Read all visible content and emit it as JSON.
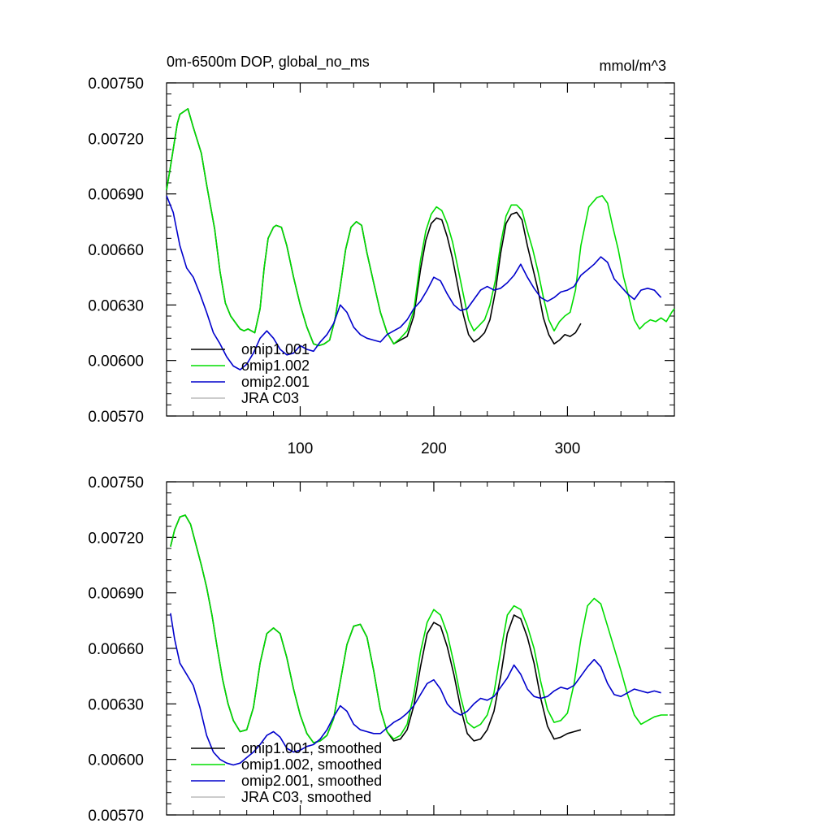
{
  "chart_data": [
    {
      "type": "line",
      "title": "0m-6500m DOP, global_no_ms",
      "units": "mmol/m^3",
      "xlim": [
        0,
        380
      ],
      "ylim": [
        0.0057,
        0.0075
      ],
      "xticks": [
        100,
        200,
        300
      ],
      "xtick_labels": [
        "100",
        "200",
        "300"
      ],
      "show_xtick_labels": true,
      "yticks": [
        0.0057,
        0.006,
        0.0063,
        0.0066,
        0.0069,
        0.0072,
        0.0075
      ],
      "ytick_labels": [
        "0.00570",
        "0.00600",
        "0.00630",
        "0.00660",
        "0.00690",
        "0.00720",
        "0.00750"
      ],
      "grid": false,
      "legend_position": "bottom-left",
      "series": [
        {
          "name": "omip1.001",
          "color": "#000000",
          "x": [
            0,
            3,
            8,
            10,
            16,
            20,
            26,
            30,
            36,
            40,
            44,
            48,
            52,
            55,
            58,
            61,
            66,
            70,
            73,
            76,
            80,
            82,
            86,
            90,
            95,
            100,
            105,
            110,
            114,
            118,
            122,
            126,
            130,
            134,
            138,
            142,
            146,
            150,
            155,
            160,
            165,
            170,
            175,
            180,
            185,
            190,
            194,
            198,
            202,
            206,
            210,
            214,
            218,
            222,
            226,
            230,
            234,
            238,
            242,
            246,
            250,
            254,
            258,
            262,
            266,
            270,
            274,
            278,
            282,
            286,
            290,
            294,
            298,
            302,
            306,
            310
          ],
          "y": [
            0.00692,
            0.00705,
            0.00728,
            0.00733,
            0.00736,
            0.00726,
            0.00712,
            0.00695,
            0.00671,
            0.00648,
            0.00631,
            0.00624,
            0.0062,
            0.00617,
            0.00616,
            0.00617,
            0.00615,
            0.00628,
            0.0065,
            0.00666,
            0.00672,
            0.00673,
            0.00672,
            0.00662,
            0.00645,
            0.0063,
            0.00618,
            0.00609,
            0.00608,
            0.00609,
            0.00611,
            0.00622,
            0.0064,
            0.0066,
            0.00672,
            0.00675,
            0.00673,
            0.00658,
            0.00642,
            0.00626,
            0.00615,
            0.00609,
            0.00611,
            0.00613,
            0.00624,
            0.00649,
            0.00665,
            0.00674,
            0.00677,
            0.00676,
            0.00667,
            0.00655,
            0.0064,
            0.00625,
            0.00614,
            0.0061,
            0.00612,
            0.00615,
            0.00622,
            0.00637,
            0.00658,
            0.00674,
            0.00679,
            0.0068,
            0.00676,
            0.00662,
            0.0065,
            0.00638,
            0.00623,
            0.00614,
            0.00609,
            0.00611,
            0.00614,
            0.00613,
            0.00615,
            0.0062
          ]
        },
        {
          "name": "omip1.002",
          "color": "#00dd00",
          "x": [
            0,
            3,
            8,
            10,
            16,
            20,
            26,
            30,
            36,
            40,
            44,
            48,
            52,
            55,
            58,
            61,
            66,
            70,
            73,
            76,
            80,
            82,
            86,
            90,
            95,
            100,
            105,
            110,
            114,
            118,
            122,
            126,
            130,
            134,
            138,
            142,
            146,
            150,
            155,
            160,
            165,
            170,
            175,
            180,
            185,
            190,
            194,
            198,
            202,
            206,
            210,
            214,
            218,
            222,
            226,
            230,
            234,
            238,
            242,
            246,
            250,
            254,
            258,
            262,
            266,
            270,
            274,
            278,
            282,
            286,
            290,
            294,
            298,
            302,
            306,
            310,
            316,
            322,
            326,
            330,
            334,
            338,
            342,
            346,
            350,
            354,
            358,
            362,
            366,
            370,
            374,
            378,
            380
          ],
          "y": [
            0.00692,
            0.00705,
            0.00728,
            0.00733,
            0.00736,
            0.00726,
            0.00712,
            0.00695,
            0.00671,
            0.00648,
            0.00631,
            0.00624,
            0.0062,
            0.00617,
            0.00616,
            0.00617,
            0.00615,
            0.00628,
            0.0065,
            0.00666,
            0.00672,
            0.00673,
            0.00672,
            0.00662,
            0.00645,
            0.0063,
            0.00618,
            0.00609,
            0.00608,
            0.00609,
            0.00611,
            0.00622,
            0.0064,
            0.0066,
            0.00672,
            0.00675,
            0.00673,
            0.00658,
            0.00642,
            0.00626,
            0.00615,
            0.00609,
            0.00612,
            0.00616,
            0.00627,
            0.00654,
            0.0067,
            0.00679,
            0.00683,
            0.00681,
            0.00674,
            0.00664,
            0.0065,
            0.00636,
            0.00622,
            0.00616,
            0.00619,
            0.00622,
            0.0063,
            0.00643,
            0.00663,
            0.00678,
            0.00684,
            0.00684,
            0.00681,
            0.0067,
            0.0066,
            0.00648,
            0.00634,
            0.00622,
            0.00616,
            0.00621,
            0.00624,
            0.00626,
            0.00638,
            0.00662,
            0.00683,
            0.00688,
            0.00689,
            0.00685,
            0.00672,
            0.0066,
            0.00645,
            0.00634,
            0.00622,
            0.00617,
            0.0062,
            0.00622,
            0.00621,
            0.00623,
            0.00621,
            0.00626,
            0.00628
          ]
        },
        {
          "name": "omip2.001",
          "color": "#0000cc",
          "x": [
            0,
            5,
            10,
            15,
            20,
            25,
            30,
            35,
            40,
            45,
            50,
            55,
            60,
            65,
            70,
            75,
            80,
            85,
            90,
            95,
            100,
            105,
            110,
            115,
            120,
            125,
            130,
            135,
            140,
            145,
            150,
            155,
            160,
            165,
            170,
            175,
            180,
            185,
            190,
            195,
            200,
            205,
            210,
            215,
            220,
            225,
            230,
            235,
            240,
            245,
            250,
            255,
            260,
            265,
            270,
            275,
            280,
            285,
            290,
            295,
            300,
            305,
            310,
            315,
            320,
            325,
            330,
            335,
            340,
            345,
            350,
            355,
            360,
            365,
            370
          ],
          "y": [
            0.00689,
            0.0068,
            0.00662,
            0.0065,
            0.00645,
            0.00636,
            0.00626,
            0.00615,
            0.00609,
            0.00602,
            0.00597,
            0.00595,
            0.00598,
            0.00604,
            0.00612,
            0.00616,
            0.00612,
            0.00606,
            0.00603,
            0.00604,
            0.00608,
            0.00606,
            0.00605,
            0.0061,
            0.00614,
            0.0062,
            0.0063,
            0.00626,
            0.00618,
            0.00614,
            0.00612,
            0.00611,
            0.0061,
            0.00614,
            0.00616,
            0.00618,
            0.00622,
            0.00628,
            0.00632,
            0.00638,
            0.00645,
            0.00643,
            0.00636,
            0.0063,
            0.00627,
            0.00628,
            0.00633,
            0.00638,
            0.0064,
            0.00638,
            0.00639,
            0.00642,
            0.00646,
            0.00652,
            0.00645,
            0.00639,
            0.00634,
            0.00632,
            0.00634,
            0.00637,
            0.00638,
            0.0064,
            0.00646,
            0.00649,
            0.00652,
            0.00656,
            0.00653,
            0.00644,
            0.0064,
            0.00636,
            0.00633,
            0.00638,
            0.00639,
            0.00638,
            0.00634
          ]
        },
        {
          "name": "JRA C03",
          "color": "#bbbbbb",
          "x": [],
          "y": []
        }
      ]
    },
    {
      "type": "line",
      "title": "",
      "units": "",
      "xlim": [
        0,
        380
      ],
      "ylim": [
        0.0057,
        0.0075
      ],
      "xticks": [
        100,
        200,
        300
      ],
      "xtick_labels": [
        "",
        "",
        ""
      ],
      "show_xtick_labels": false,
      "yticks": [
        0.0057,
        0.006,
        0.0063,
        0.0066,
        0.0069,
        0.0072,
        0.0075
      ],
      "ytick_labels": [
        "0.00570",
        "0.00600",
        "0.00630",
        "0.00660",
        "0.00690",
        "0.00720",
        "0.00750"
      ],
      "grid": false,
      "legend_position": "bottom-left",
      "series": [
        {
          "name": "omip1.001, smoothed",
          "color": "#000000",
          "x": [
            3,
            6,
            10,
            14,
            18,
            22,
            26,
            30,
            34,
            38,
            42,
            46,
            50,
            55,
            60,
            65,
            70,
            75,
            80,
            85,
            90,
            95,
            100,
            105,
            110,
            115,
            120,
            125,
            130,
            135,
            140,
            145,
            150,
            155,
            160,
            165,
            170,
            175,
            180,
            185,
            190,
            195,
            200,
            205,
            210,
            215,
            220,
            225,
            230,
            235,
            240,
            245,
            250,
            255,
            260,
            265,
            270,
            275,
            280,
            285,
            290,
            295,
            300,
            305,
            310
          ],
          "y": [
            0.00715,
            0.00724,
            0.00731,
            0.00732,
            0.00727,
            0.00716,
            0.00705,
            0.00693,
            0.00678,
            0.0066,
            0.00643,
            0.0063,
            0.00621,
            0.00615,
            0.00616,
            0.00628,
            0.00652,
            0.00668,
            0.00671,
            0.00668,
            0.00655,
            0.00638,
            0.00624,
            0.00614,
            0.00609,
            0.0061,
            0.00613,
            0.00622,
            0.00642,
            0.00662,
            0.00672,
            0.00673,
            0.00666,
            0.00648,
            0.00627,
            0.00615,
            0.0061,
            0.00611,
            0.00616,
            0.00629,
            0.0065,
            0.00668,
            0.00674,
            0.00672,
            0.00661,
            0.00646,
            0.00628,
            0.00614,
            0.0061,
            0.00611,
            0.00616,
            0.00626,
            0.00645,
            0.00668,
            0.00678,
            0.00676,
            0.00666,
            0.00652,
            0.00633,
            0.00618,
            0.00611,
            0.00612,
            0.00614,
            0.00615,
            0.00616
          ]
        },
        {
          "name": "omip1.002, smoothed",
          "color": "#00dd00",
          "x": [
            3,
            6,
            10,
            14,
            18,
            22,
            26,
            30,
            34,
            38,
            42,
            46,
            50,
            55,
            60,
            65,
            70,
            75,
            80,
            85,
            90,
            95,
            100,
            105,
            110,
            115,
            120,
            125,
            130,
            135,
            140,
            145,
            150,
            155,
            160,
            165,
            170,
            175,
            180,
            185,
            190,
            195,
            200,
            205,
            210,
            215,
            220,
            225,
            230,
            235,
            240,
            245,
            250,
            255,
            260,
            265,
            270,
            275,
            280,
            285,
            290,
            295,
            300,
            305,
            310,
            315,
            320,
            325,
            330,
            335,
            340,
            345,
            350,
            355,
            360,
            365,
            370,
            375
          ],
          "y": [
            0.00715,
            0.00724,
            0.00731,
            0.00732,
            0.00727,
            0.00716,
            0.00705,
            0.00693,
            0.00678,
            0.0066,
            0.00643,
            0.0063,
            0.00621,
            0.00615,
            0.00616,
            0.00628,
            0.00652,
            0.00668,
            0.00671,
            0.00668,
            0.00655,
            0.00638,
            0.00624,
            0.00614,
            0.00609,
            0.0061,
            0.00613,
            0.00622,
            0.00642,
            0.00662,
            0.00672,
            0.00673,
            0.00666,
            0.00648,
            0.00627,
            0.00615,
            0.00611,
            0.00613,
            0.00619,
            0.00635,
            0.00658,
            0.00674,
            0.00681,
            0.00678,
            0.00668,
            0.00652,
            0.00634,
            0.0062,
            0.00617,
            0.00619,
            0.00624,
            0.00636,
            0.00658,
            0.00678,
            0.00683,
            0.00681,
            0.00672,
            0.0066,
            0.00642,
            0.00627,
            0.0062,
            0.00621,
            0.00625,
            0.00641,
            0.00665,
            0.00683,
            0.00687,
            0.00684,
            0.00672,
            0.0066,
            0.00648,
            0.00635,
            0.00624,
            0.00619,
            0.00621,
            0.00623,
            0.00624,
            0.00624
          ]
        },
        {
          "name": "omip2.001, smoothed",
          "color": "#0000cc",
          "x": [
            3,
            6,
            10,
            15,
            20,
            25,
            30,
            35,
            40,
            45,
            50,
            55,
            60,
            65,
            70,
            75,
            80,
            85,
            90,
            95,
            100,
            105,
            110,
            115,
            120,
            125,
            130,
            135,
            140,
            145,
            150,
            155,
            160,
            165,
            170,
            175,
            180,
            185,
            190,
            195,
            200,
            205,
            210,
            215,
            220,
            225,
            230,
            235,
            240,
            245,
            250,
            255,
            260,
            265,
            270,
            275,
            280,
            285,
            290,
            295,
            300,
            305,
            310,
            315,
            320,
            325,
            330,
            335,
            340,
            345,
            350,
            355,
            360,
            365,
            370
          ],
          "y": [
            0.00679,
            0.00665,
            0.00652,
            0.00646,
            0.0064,
            0.00628,
            0.00613,
            0.00604,
            0.006,
            0.00598,
            0.00597,
            0.00598,
            0.00601,
            0.00604,
            0.00608,
            0.00613,
            0.00615,
            0.00612,
            0.00606,
            0.00604,
            0.00605,
            0.00607,
            0.00608,
            0.00611,
            0.00616,
            0.00623,
            0.00629,
            0.00626,
            0.00619,
            0.00616,
            0.00615,
            0.00614,
            0.00614,
            0.00617,
            0.0062,
            0.00622,
            0.00625,
            0.00629,
            0.00635,
            0.00641,
            0.00643,
            0.00638,
            0.0063,
            0.00626,
            0.00624,
            0.00626,
            0.0063,
            0.00633,
            0.00632,
            0.00634,
            0.00639,
            0.00644,
            0.00651,
            0.00646,
            0.00638,
            0.00634,
            0.00633,
            0.00634,
            0.00637,
            0.00639,
            0.00638,
            0.0064,
            0.00645,
            0.0065,
            0.00654,
            0.0065,
            0.00641,
            0.00635,
            0.00634,
            0.00636,
            0.00638,
            0.00637,
            0.00636,
            0.00637,
            0.00636
          ]
        },
        {
          "name": "JRA C03, smoothed",
          "color": "#bbbbbb",
          "x": [],
          "y": []
        }
      ]
    }
  ]
}
